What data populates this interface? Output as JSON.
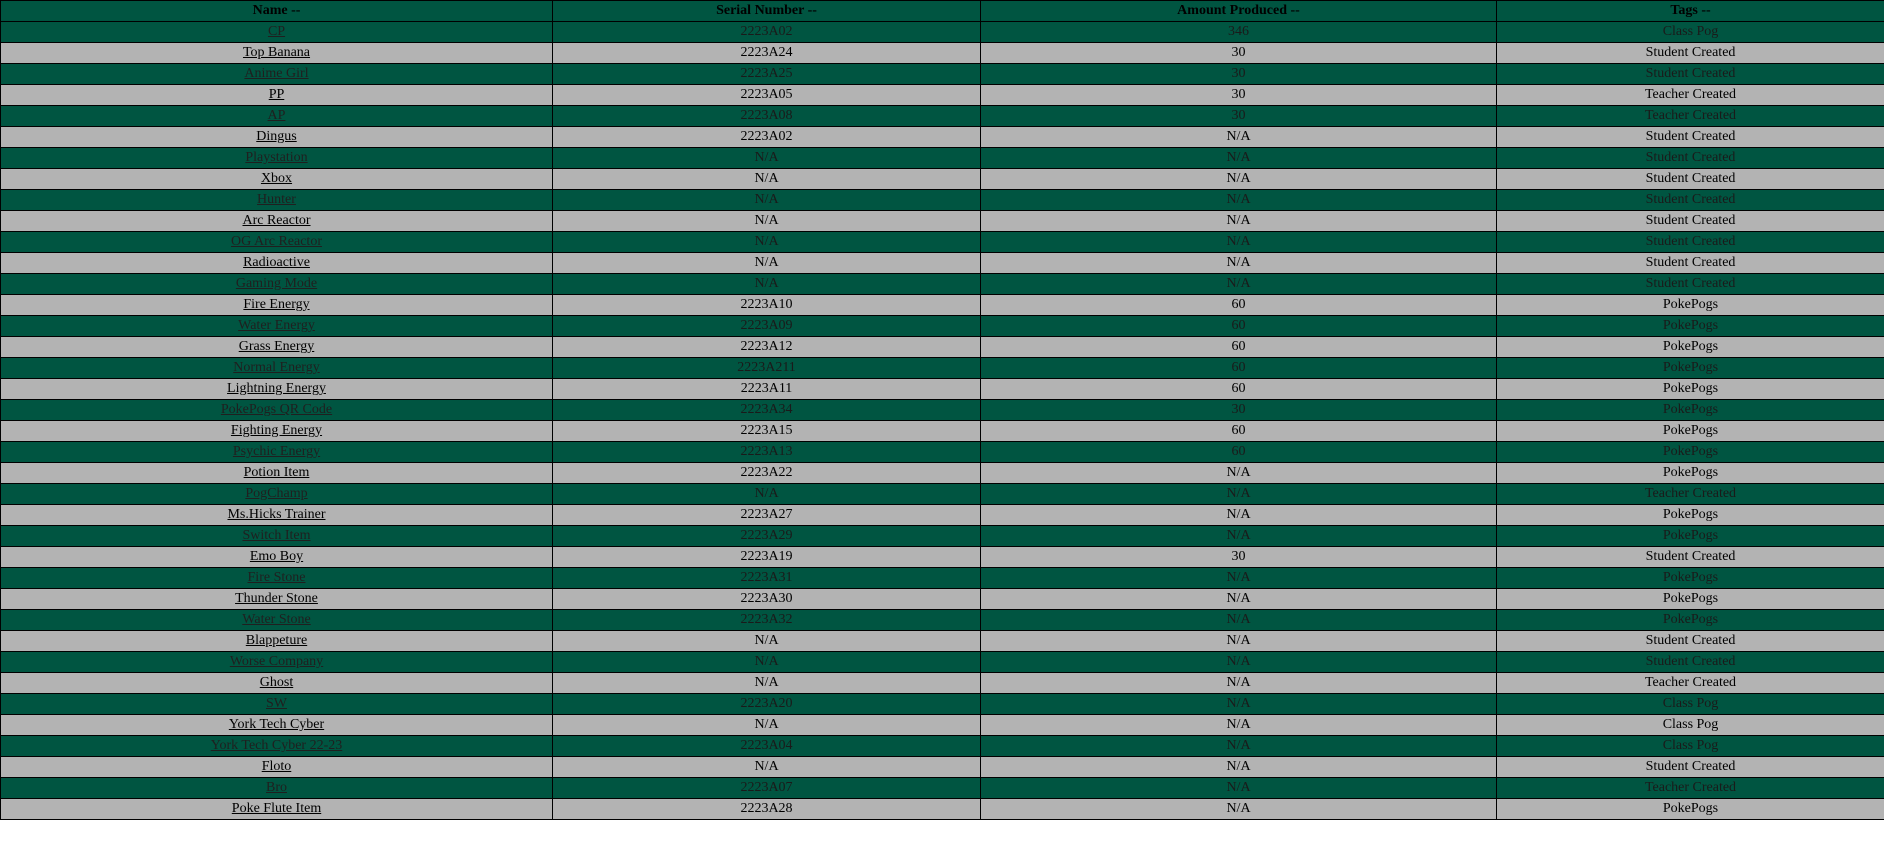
{
  "colors": {
    "green_row": "#005541",
    "grey_row": "#b3b3b3",
    "text": "#000000"
  },
  "headers": {
    "name": "Name --",
    "serial": "Serial Number --",
    "amount": "Amount Produced --",
    "tags": "Tags --"
  },
  "rows": [
    {
      "name": "CP",
      "serial": "2223A02",
      "amount": "346",
      "tags": "Class Pog"
    },
    {
      "name": "Top Banana",
      "serial": "2223A24",
      "amount": "30",
      "tags": "Student Created"
    },
    {
      "name": "Anime Girl",
      "serial": "2223A25",
      "amount": "30",
      "tags": "Student Created"
    },
    {
      "name": "PP",
      "serial": "2223A05",
      "amount": "30",
      "tags": "Teacher Created"
    },
    {
      "name": "AP",
      "serial": "2223A08",
      "amount": "30",
      "tags": "Teacher Created"
    },
    {
      "name": "Dingus",
      "serial": "2223A02",
      "amount": "N/A",
      "tags": "Student Created"
    },
    {
      "name": "Playstation",
      "serial": "N/A",
      "amount": "N/A",
      "tags": "Student Created"
    },
    {
      "name": "Xbox",
      "serial": "N/A",
      "amount": "N/A",
      "tags": "Student Created"
    },
    {
      "name": "Hunter",
      "serial": "N/A",
      "amount": "N/A",
      "tags": "Student Created"
    },
    {
      "name": "Arc Reactor",
      "serial": "N/A",
      "amount": "N/A",
      "tags": "Student Created"
    },
    {
      "name": "OG Arc Reactor",
      "serial": "N/A",
      "amount": "N/A",
      "tags": "Student Created"
    },
    {
      "name": "Radioactive",
      "serial": "N/A",
      "amount": "N/A",
      "tags": "Student Created"
    },
    {
      "name": "Gaming Mode",
      "serial": "N/A",
      "amount": "N/A",
      "tags": "Student Created"
    },
    {
      "name": "Fire Energy",
      "serial": "2223A10",
      "amount": "60",
      "tags": "PokePogs"
    },
    {
      "name": "Water Energy",
      "serial": "2223A09",
      "amount": "60",
      "tags": "PokePogs"
    },
    {
      "name": "Grass Energy",
      "serial": "2223A12",
      "amount": "60",
      "tags": "PokePogs"
    },
    {
      "name": "Normal Energy",
      "serial": "2223A211",
      "amount": "60",
      "tags": "PokePogs"
    },
    {
      "name": "Lightning Energy",
      "serial": "2223A11",
      "amount": "60",
      "tags": "PokePogs"
    },
    {
      "name": "PokePogs QR Code",
      "serial": "2223A34",
      "amount": "30",
      "tags": "PokePogs"
    },
    {
      "name": "Fighting Energy",
      "serial": "2223A15",
      "amount": "60",
      "tags": "PokePogs"
    },
    {
      "name": "Psychic Energy",
      "serial": "2223A13",
      "amount": "60",
      "tags": "PokePogs"
    },
    {
      "name": "Potion Item",
      "serial": "2223A22",
      "amount": "N/A",
      "tags": "PokePogs"
    },
    {
      "name": "PogChamp",
      "serial": "N/A",
      "amount": "N/A",
      "tags": "Teacher Created"
    },
    {
      "name": "Ms.Hicks Trainer",
      "serial": "2223A27",
      "amount": "N/A",
      "tags": "PokePogs"
    },
    {
      "name": "Switch Item",
      "serial": "2223A29",
      "amount": "N/A",
      "tags": "PokePogs"
    },
    {
      "name": "Emo Boy",
      "serial": "2223A19",
      "amount": "30",
      "tags": "Student Created"
    },
    {
      "name": "Fire Stone",
      "serial": "2223A31",
      "amount": "N/A",
      "tags": "PokePogs"
    },
    {
      "name": "Thunder Stone",
      "serial": "2223A30",
      "amount": "N/A",
      "tags": "PokePogs"
    },
    {
      "name": "Water Stone",
      "serial": "2223A32",
      "amount": "N/A",
      "tags": "PokePogs"
    },
    {
      "name": "Blappeture",
      "serial": "N/A",
      "amount": "N/A",
      "tags": "Student Created"
    },
    {
      "name": "Worse Company",
      "serial": "N/A",
      "amount": "N/A",
      "tags": "Student Created"
    },
    {
      "name": "Ghost",
      "serial": "N/A",
      "amount": "N/A",
      "tags": "Teacher Created"
    },
    {
      "name": "SW",
      "serial": "2223A20",
      "amount": "N/A",
      "tags": "Class Pog"
    },
    {
      "name": "York Tech Cyber",
      "serial": "N/A",
      "amount": "N/A",
      "tags": "Class Pog"
    },
    {
      "name": "York Tech Cyber 22-23",
      "serial": "2223A04",
      "amount": "N/A",
      "tags": "Class Pog"
    },
    {
      "name": "Floto",
      "serial": "N/A",
      "amount": "N/A",
      "tags": "Student Created"
    },
    {
      "name": "Bro",
      "serial": "2223A07",
      "amount": "N/A",
      "tags": "Teacher Created"
    },
    {
      "name": "Poke Flute Item",
      "serial": "2223A28",
      "amount": "N/A",
      "tags": "PokePogs"
    }
  ]
}
